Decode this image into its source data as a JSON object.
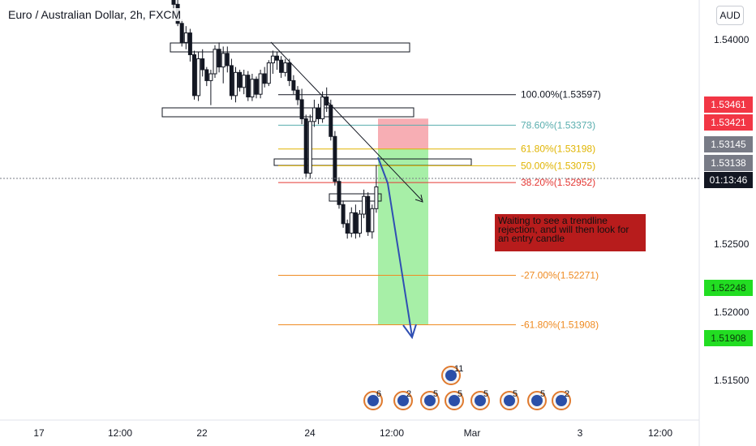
{
  "header": {
    "title": "Euro / Australian Dollar, 2h, FXCM",
    "currency": "AUD"
  },
  "note": {
    "text": "Waiting to see a trendline rejection, and will then look for an entry candle"
  },
  "colors": {
    "up_candle": "#ffffff",
    "down_candle": "#131722",
    "fib_100": "#131722",
    "fib_786": "#5aaeae",
    "fib_618": "#e0b400",
    "fib_50": "#e0b400",
    "fib_382": "#e53935",
    "fib_ext": "#ef8b22",
    "stop_zone": "#f06b76",
    "target_zone": "#5ee15e",
    "arrow": "#2f4fb3",
    "price_red": "#f23645",
    "price_gray": "#787b86",
    "price_dark": "#131722",
    "price_green": "#22dd22"
  },
  "chart_data": {
    "type": "candlestick",
    "title": "Euro / Australian Dollar, 2h, FXCM",
    "ylim": [
      1.5135,
      1.5438
    ],
    "x_ticks": [
      "17",
      "12:00",
      "22",
      "24",
      "12:00",
      "Mar",
      "3",
      "12:00"
    ],
    "y_ticks": [
      "1.54000",
      "1.52500",
      "1.52000",
      "1.51500"
    ],
    "candles": [
      [
        1.5434,
        1.5438,
        1.542,
        1.5426
      ],
      [
        1.5426,
        1.543,
        1.541,
        1.5412
      ],
      [
        1.5412,
        1.5415,
        1.5395,
        1.5398
      ],
      [
        1.5398,
        1.541,
        1.5393,
        1.5405
      ],
      [
        1.5405,
        1.5408,
        1.5384,
        1.5389
      ],
      [
        1.5389,
        1.5392,
        1.5356,
        1.5359
      ],
      [
        1.5359,
        1.5391,
        1.5355,
        1.5386
      ],
      [
        1.5386,
        1.5393,
        1.5373,
        1.5378
      ],
      [
        1.5378,
        1.538,
        1.5366,
        1.537
      ],
      [
        1.537,
        1.5378,
        1.5352,
        1.5375
      ],
      [
        1.5375,
        1.5396,
        1.5372,
        1.5393
      ],
      [
        1.5393,
        1.5398,
        1.5376,
        1.538
      ],
      [
        1.538,
        1.5395,
        1.5368,
        1.539
      ],
      [
        1.539,
        1.5395,
        1.5376,
        1.5381
      ],
      [
        1.5381,
        1.5386,
        1.5356,
        1.5359
      ],
      [
        1.5359,
        1.538,
        1.5354,
        1.5376
      ],
      [
        1.5376,
        1.5378,
        1.5362,
        1.5365
      ],
      [
        1.5365,
        1.5378,
        1.536,
        1.5374
      ],
      [
        1.5374,
        1.5377,
        1.5355,
        1.5358
      ],
      [
        1.5358,
        1.5375,
        1.5355,
        1.5371
      ],
      [
        1.5371,
        1.5373,
        1.5357,
        1.536
      ],
      [
        1.536,
        1.5378,
        1.5357,
        1.5375
      ],
      [
        1.5375,
        1.538,
        1.5365,
        1.5368
      ],
      [
        1.5368,
        1.5385,
        1.5366,
        1.5383
      ],
      [
        1.5383,
        1.5392,
        1.5375,
        1.5388
      ],
      [
        1.5388,
        1.5391,
        1.5378,
        1.5385
      ],
      [
        1.5385,
        1.5388,
        1.5372,
        1.5376
      ],
      [
        1.5376,
        1.5386,
        1.5373,
        1.5383
      ],
      [
        1.5383,
        1.5386,
        1.5366,
        1.537
      ],
      [
        1.537,
        1.5374,
        1.536,
        1.5363
      ],
      [
        1.5363,
        1.5366,
        1.5352,
        1.5356
      ],
      [
        1.5356,
        1.5364,
        1.5338,
        1.5342
      ],
      [
        1.5342,
        1.5345,
        1.5299,
        1.5302
      ],
      [
        1.5302,
        1.5345,
        1.5298,
        1.534
      ],
      [
        1.534,
        1.5356,
        1.5336,
        1.535
      ],
      [
        1.535,
        1.5353,
        1.5338,
        1.5342
      ],
      [
        1.5342,
        1.5362,
        1.5339,
        1.5358
      ],
      [
        1.5358,
        1.5365,
        1.5347,
        1.5352
      ],
      [
        1.5352,
        1.5356,
        1.5326,
        1.5329
      ],
      [
        1.5329,
        1.5333,
        1.5293,
        1.5296
      ],
      [
        1.5296,
        1.5299,
        1.5276,
        1.5279
      ],
      [
        1.5279,
        1.5282,
        1.5262,
        1.5265
      ],
      [
        1.5265,
        1.5268,
        1.5254,
        1.5258
      ],
      [
        1.5258,
        1.5277,
        1.5255,
        1.5273
      ],
      [
        1.5273,
        1.5279,
        1.5254,
        1.5258
      ],
      [
        1.5258,
        1.5275,
        1.5255,
        1.5272
      ],
      [
        1.5272,
        1.529,
        1.5269,
        1.5285
      ],
      [
        1.5285,
        1.5288,
        1.5256,
        1.5259
      ],
      [
        1.5259,
        1.5279,
        1.5254,
        1.5276
      ],
      [
        1.5276,
        1.5308,
        1.5273,
        1.5292
      ]
    ],
    "fib_levels": [
      {
        "label": "100.00%(1.53597)",
        "value": 1.53597
      },
      {
        "label": "78.60%(1.53373)",
        "value": 1.53373
      },
      {
        "label": "61.80%(1.53198)",
        "value": 1.53198
      },
      {
        "label": "50.00%(1.53075)",
        "value": 1.53075
      },
      {
        "label": "38.20%(1.52952)",
        "value": 1.52952
      },
      {
        "label": "-27.00%(1.52271)",
        "value": 1.52271
      },
      {
        "label": "-61.80%(1.51908)",
        "value": 1.51908
      }
    ],
    "price_labels": [
      {
        "text": "1.53461",
        "value": 1.53461,
        "style": "red"
      },
      {
        "text": "1.53421",
        "value": 1.53421,
        "style": "red"
      },
      {
        "text": "1.53145",
        "value": 1.53145,
        "style": "gray"
      },
      {
        "text": "1.53138",
        "value": 1.53138,
        "style": "gray"
      },
      {
        "text": "01:13:46",
        "value": 1.53035,
        "style": "dark"
      },
      {
        "text": "1.52248",
        "value": 1.52248,
        "style": "green"
      },
      {
        "text": "1.51908",
        "value": 1.51908,
        "style": "green"
      }
    ],
    "events": [
      {
        "count": "6"
      },
      {
        "count": "2"
      },
      {
        "count": "5"
      },
      {
        "count": "5"
      },
      {
        "count": "11"
      },
      {
        "count": "5"
      },
      {
        "count": "5"
      },
      {
        "count": "5"
      },
      {
        "count": "2"
      }
    ]
  }
}
